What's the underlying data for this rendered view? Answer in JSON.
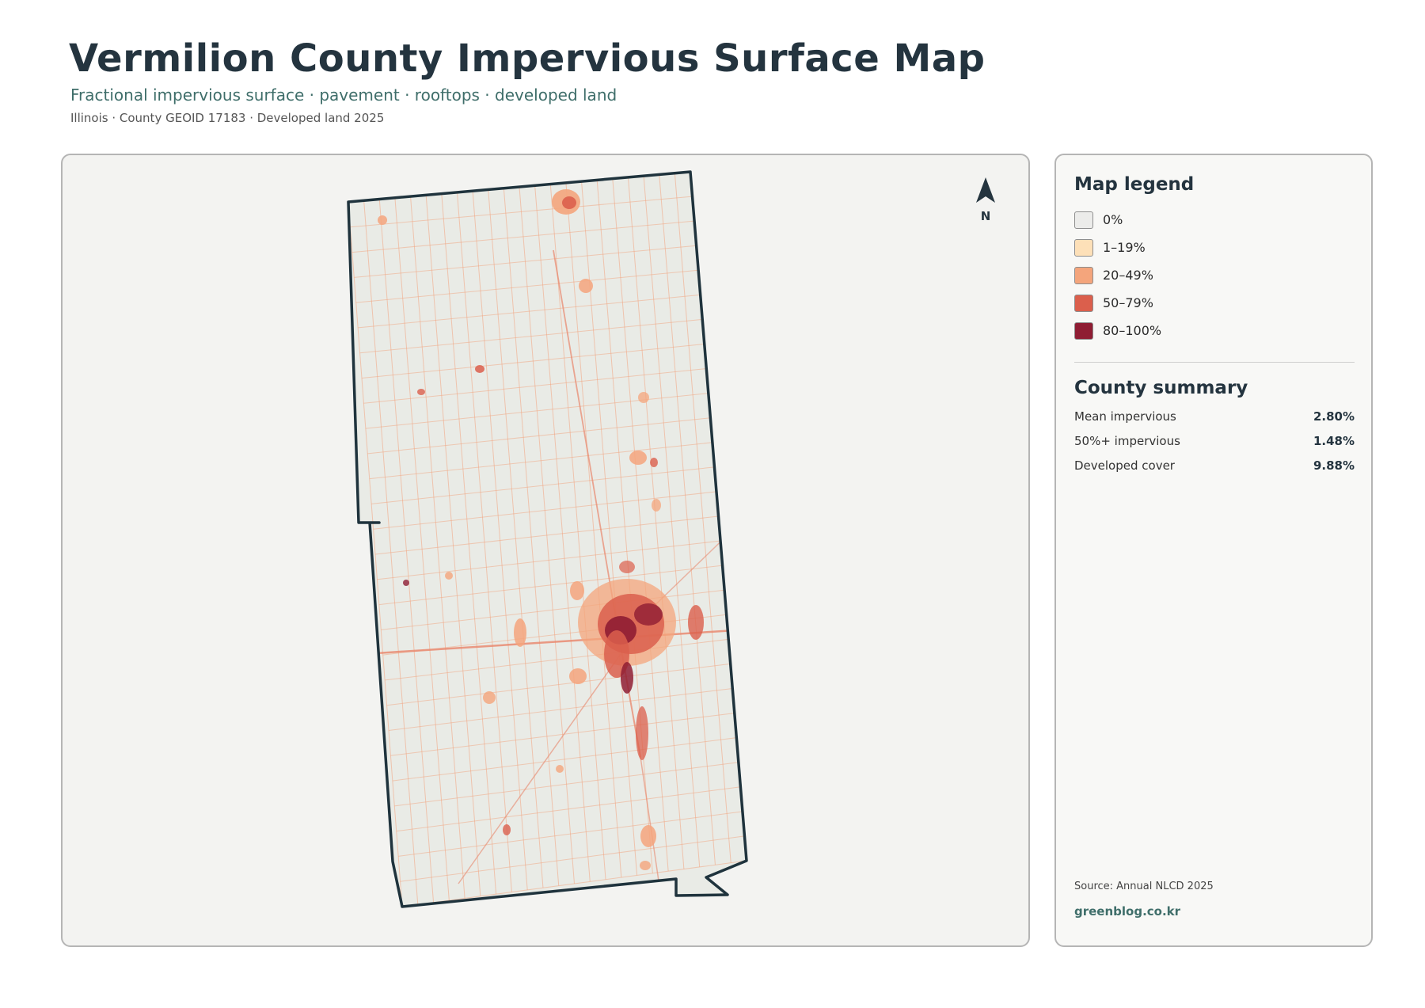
{
  "header": {
    "title": "Vermilion County Impervious Surface Map",
    "subtitle": "Fractional impervious surface · pavement · rooftops · developed land",
    "meta": "Illinois · County GEOID 17183 · Developed land 2025"
  },
  "map": {
    "north_label": "N",
    "colors": {
      "background": "#e9ebe6",
      "boundary": "#1f333d",
      "road": "#f2a37e",
      "road_major": "#e8856a"
    }
  },
  "legend": {
    "title": "Map legend",
    "items": [
      {
        "label": "0%",
        "color": "#ececea"
      },
      {
        "label": "1–19%",
        "color": "#fde0b8"
      },
      {
        "label": "20–49%",
        "color": "#f4a57c"
      },
      {
        "label": "50–79%",
        "color": "#db5f4c"
      },
      {
        "label": "80–100%",
        "color": "#8f1d33"
      }
    ]
  },
  "summary": {
    "title": "County summary",
    "stats": [
      {
        "label": "Mean impervious",
        "value": "2.80%"
      },
      {
        "label": "50%+ impervious",
        "value": "1.48%"
      },
      {
        "label": "Developed cover",
        "value": "9.88%"
      }
    ]
  },
  "footer": {
    "source": "Source: Annual NLCD 2025",
    "brand": "greenblog.co.kr"
  }
}
